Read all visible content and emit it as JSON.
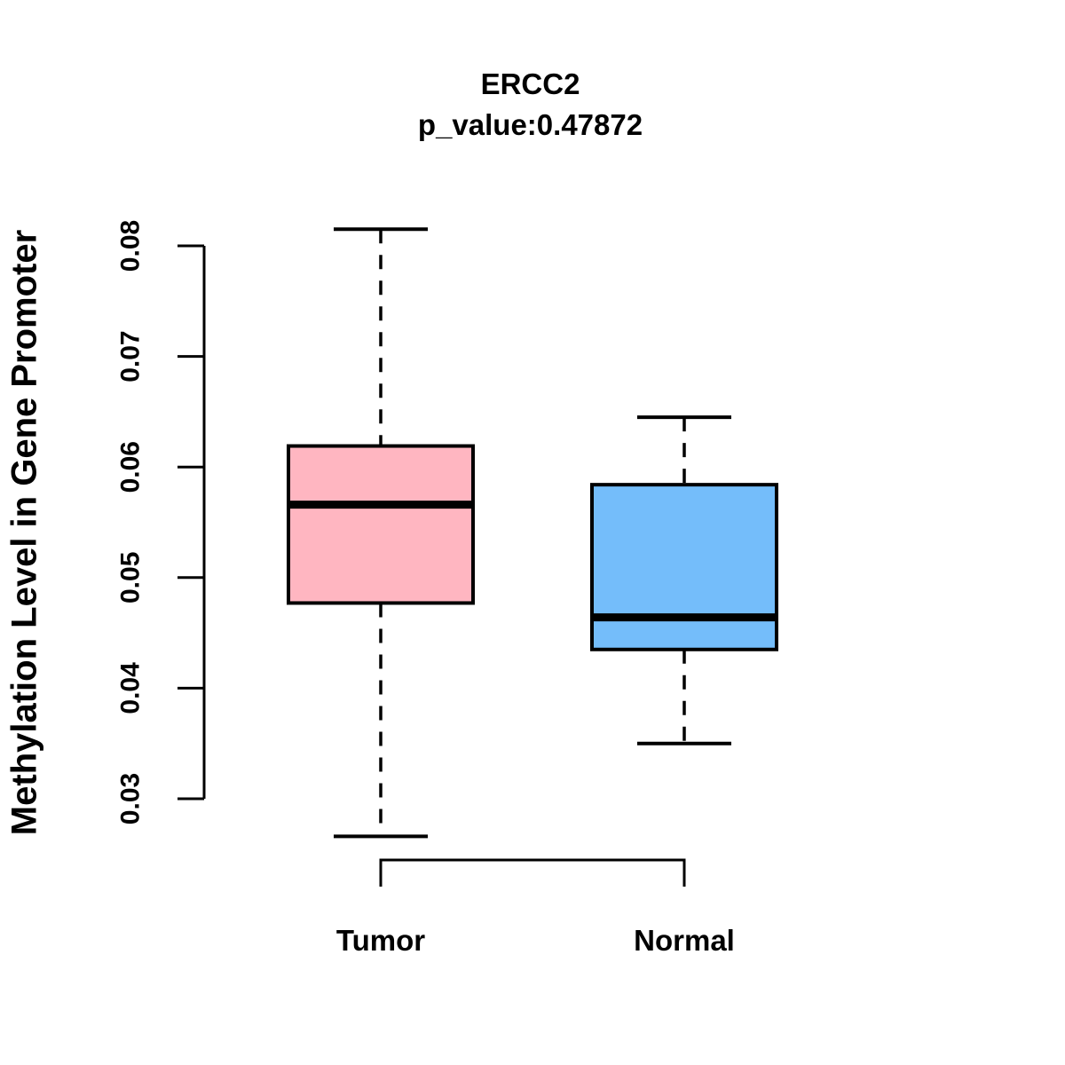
{
  "chart_data": {
    "type": "boxplot",
    "title": "ERCC2",
    "subtitle": "p_value:0.47872",
    "p_value": 0.47872,
    "ylabel": "Methylation Level in Gene Promoter",
    "xlabel": "",
    "y_axis": {
      "ticks": [
        0.03,
        0.04,
        0.05,
        0.06,
        0.07,
        0.08
      ],
      "tick_labels": [
        "0.03",
        "0.04",
        "0.05",
        "0.06",
        "0.07",
        "0.08"
      ],
      "range_shown": [
        0.03,
        0.08
      ]
    },
    "grid": "off",
    "legend": "none",
    "groups": [
      {
        "name": "Tumor",
        "fill_color": "#FFB6C1",
        "stats": {
          "lower_whisker": 0.0266,
          "q1": 0.0477,
          "median": 0.0566,
          "q3": 0.0619,
          "upper_whisker": 0.0815
        }
      },
      {
        "name": "Normal",
        "fill_color": "#74BDFA",
        "stats": {
          "lower_whisker": 0.035,
          "q1": 0.0435,
          "median": 0.0464,
          "q3": 0.0584,
          "upper_whisker": 0.0645
        }
      }
    ],
    "colors": {
      "line": "#000000",
      "background": "#FFFFFF"
    }
  }
}
